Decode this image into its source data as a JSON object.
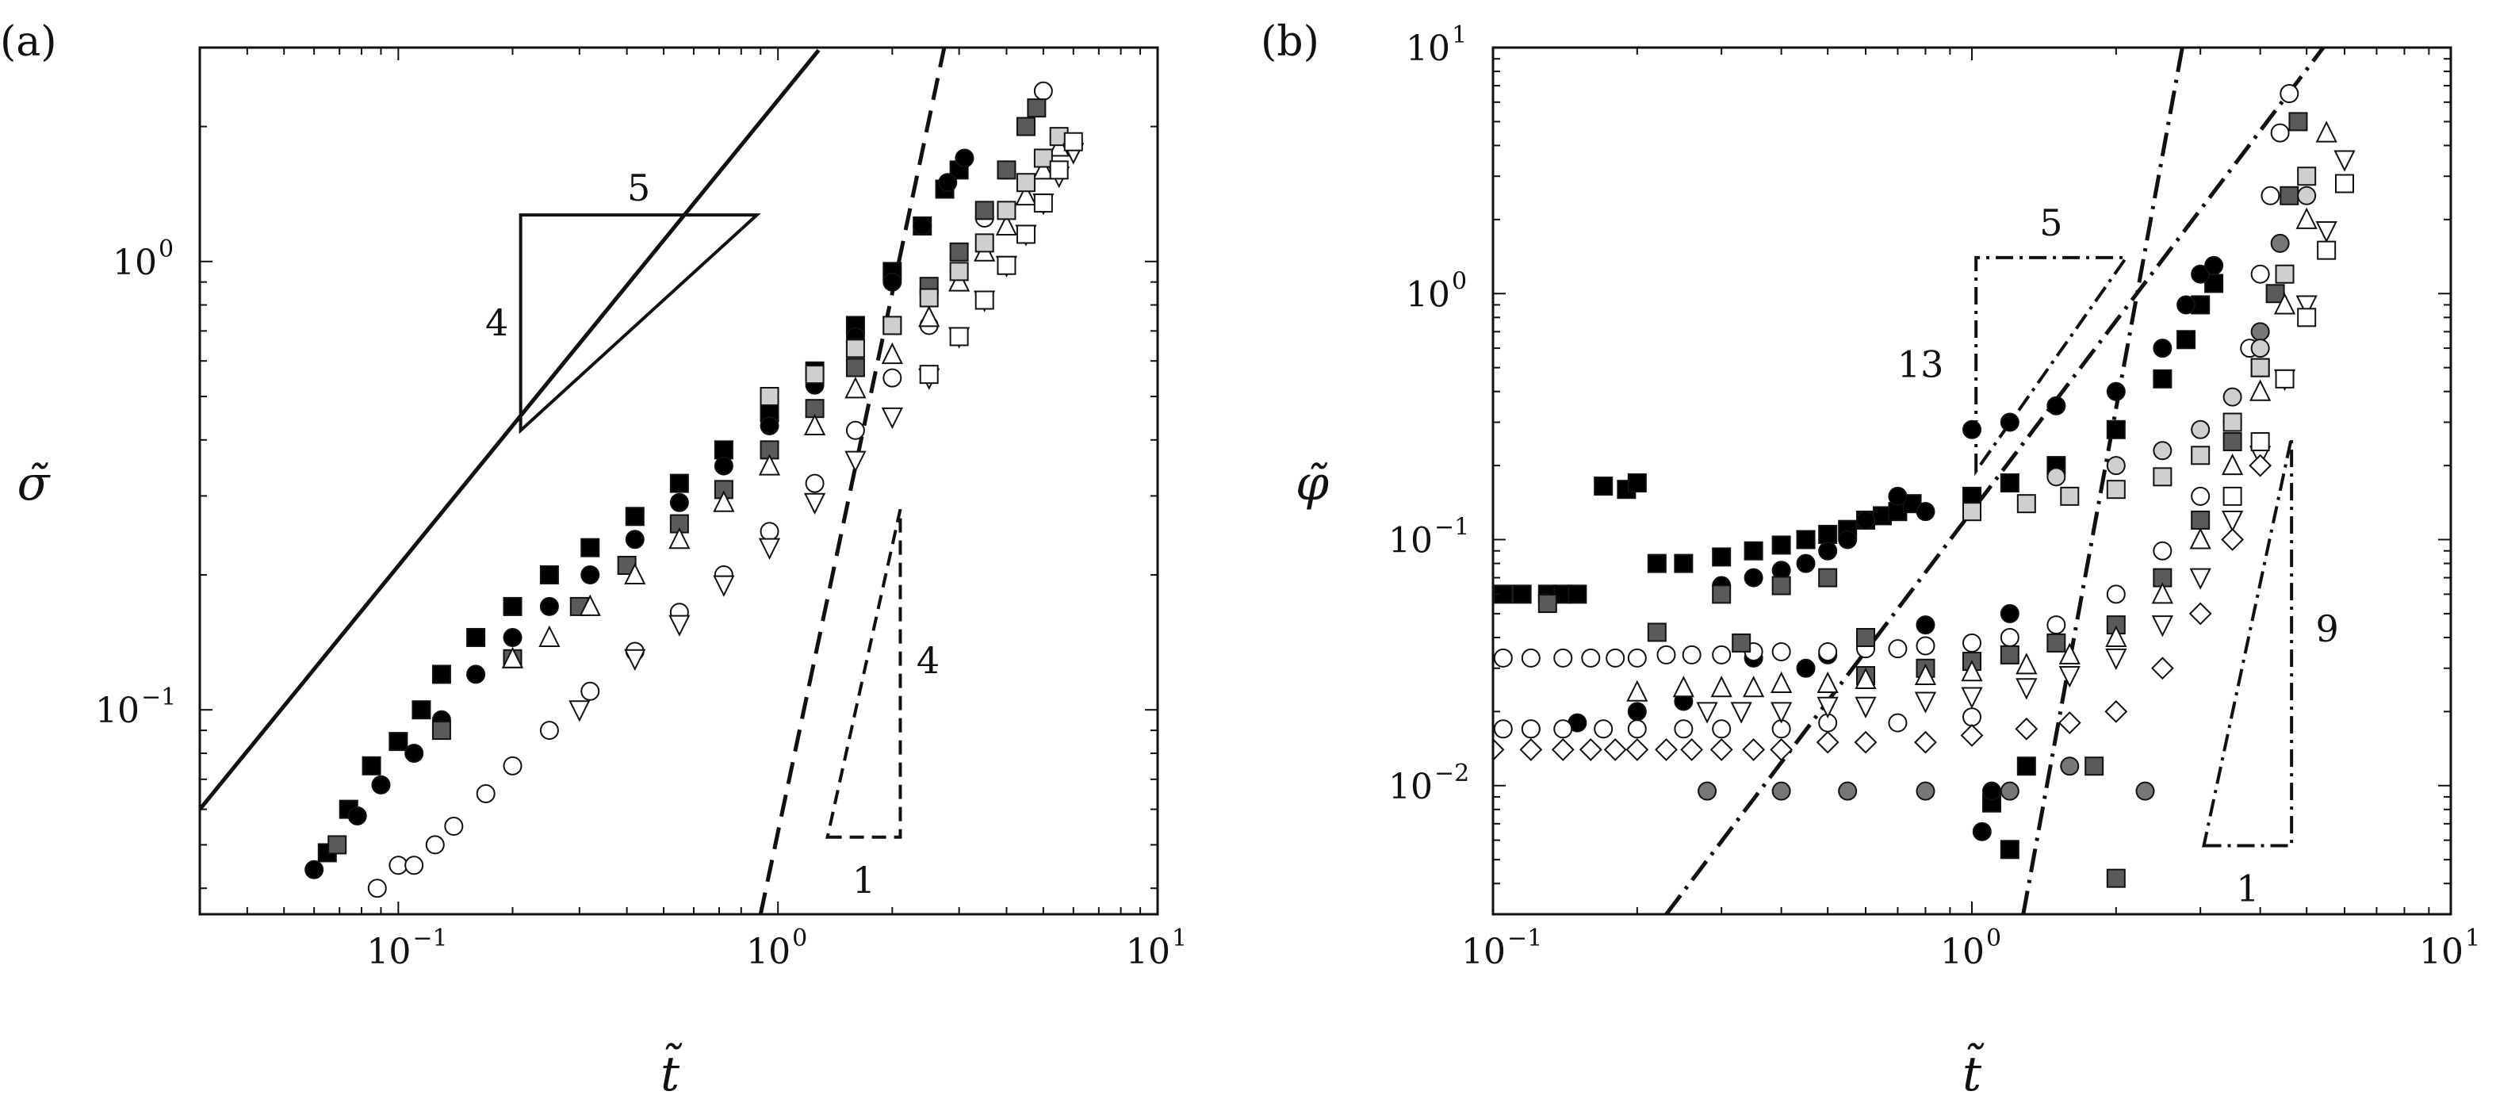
{
  "chart_data": [
    {
      "panel": "(a)",
      "type": "scatter",
      "xlabel": "t̃",
      "ylabel": "σ̃",
      "xscale": "log",
      "yscale": "log",
      "xlim": [
        0.03,
        10
      ],
      "ylim": [
        0.035,
        3
      ],
      "x_tick_labels": [
        "10",
        "10",
        "10"
      ],
      "x_tick_exponents": [
        "−1",
        "0",
        "1"
      ],
      "y_tick_labels": [
        "10",
        "10"
      ],
      "y_tick_exponents": [
        "−1",
        "0"
      ],
      "grid": false,
      "reference_lines": [
        {
          "style": "solid",
          "slope": 0.8,
          "points": [
            [
              0.03,
              0.06
            ],
            [
              1.28,
              2.96
            ]
          ]
        },
        {
          "style": "dashed",
          "slope": 4,
          "points": [
            [
              0.9,
              0.035
            ],
            [
              3.0,
              4.3
            ]
          ]
        }
      ],
      "slope_triangles": [
        {
          "style": "solid",
          "rise": "4",
          "run": "5",
          "vertices": [
            [
              0.21,
              1.27
            ],
            [
              0.88,
              1.27
            ],
            [
              0.21,
              0.42
            ]
          ]
        },
        {
          "style": "dashed",
          "rise": "4",
          "run": "1",
          "vertices": [
            [
              1.35,
              0.052
            ],
            [
              2.1,
              0.052
            ],
            [
              2.1,
              0.28
            ]
          ]
        }
      ],
      "series": [
        {
          "marker": "filled-square",
          "color": "#000000",
          "x": [
            0.065,
            0.074,
            0.085,
            0.1,
            0.115,
            0.13,
            0.16,
            0.2,
            0.25,
            0.32,
            0.42,
            0.55,
            0.72,
            0.95,
            1.25,
            1.6,
            2.0,
            2.4,
            2.75,
            3.0
          ],
          "y": [
            0.048,
            0.06,
            0.075,
            0.085,
            0.1,
            0.12,
            0.145,
            0.17,
            0.2,
            0.23,
            0.27,
            0.32,
            0.38,
            0.46,
            0.57,
            0.72,
            0.95,
            1.2,
            1.45,
            1.6
          ]
        },
        {
          "marker": "filled-circle",
          "color": "#000000",
          "x": [
            0.06,
            0.078,
            0.09,
            0.11,
            0.13,
            0.16,
            0.2,
            0.25,
            0.32,
            0.42,
            0.55,
            0.72,
            0.95,
            1.25,
            1.6,
            2.0,
            2.4,
            2.8,
            3.1
          ],
          "y": [
            0.044,
            0.058,
            0.068,
            0.08,
            0.095,
            0.12,
            0.145,
            0.17,
            0.2,
            0.24,
            0.29,
            0.35,
            0.43,
            0.53,
            0.68,
            0.9,
            1.2,
            1.5,
            1.7
          ]
        },
        {
          "marker": "open-circle",
          "color": "#ffffff",
          "x": [
            0.088,
            0.1,
            0.11,
            0.125,
            0.14,
            0.17,
            0.2,
            0.25,
            0.32,
            0.42,
            0.55,
            0.72,
            0.95,
            1.25,
            1.6,
            2.0,
            2.5,
            3.0,
            3.5,
            4.0,
            4.5,
            5.0
          ],
          "y": [
            0.04,
            0.045,
            0.045,
            0.05,
            0.055,
            0.065,
            0.075,
            0.09,
            0.11,
            0.135,
            0.165,
            0.2,
            0.25,
            0.32,
            0.42,
            0.55,
            0.72,
            0.95,
            1.25,
            1.6,
            2.0,
            2.4
          ]
        },
        {
          "marker": "dark-gray-square",
          "color": "#5a5a5a",
          "x": [
            0.069,
            0.13,
            0.2,
            0.3,
            0.4,
            0.55,
            0.72,
            0.95,
            1.25,
            1.6,
            2.0,
            2.5,
            3.0,
            3.5,
            4.0,
            4.5,
            4.8
          ],
          "y": [
            0.05,
            0.09,
            0.13,
            0.17,
            0.21,
            0.26,
            0.31,
            0.38,
            0.47,
            0.58,
            0.72,
            0.88,
            1.05,
            1.3,
            1.6,
            2.0,
            2.2
          ]
        },
        {
          "marker": "open-triangle-up",
          "color": "#ffffff",
          "x": [
            0.2,
            0.25,
            0.32,
            0.42,
            0.55,
            0.72,
            0.95,
            1.25,
            1.6,
            2.0,
            2.5,
            3.0,
            3.5,
            4.0,
            4.5,
            5.0,
            5.5
          ],
          "y": [
            0.13,
            0.145,
            0.17,
            0.2,
            0.24,
            0.29,
            0.35,
            0.43,
            0.52,
            0.62,
            0.75,
            0.9,
            1.05,
            1.2,
            1.4,
            1.6,
            1.8
          ]
        },
        {
          "marker": "light-gray-square",
          "color": "#cfcfcf",
          "x": [
            0.95,
            1.25,
            1.6,
            2.0,
            2.5,
            3.0,
            3.5,
            4.0,
            4.5,
            5.0,
            5.5
          ],
          "y": [
            0.5,
            0.56,
            0.64,
            0.72,
            0.83,
            0.95,
            1.1,
            1.3,
            1.5,
            1.7,
            1.9
          ]
        },
        {
          "marker": "open-triangle-down",
          "color": "#ffffff",
          "x": [
            0.3,
            0.42,
            0.55,
            0.72,
            0.95,
            1.25,
            1.6,
            2.0,
            2.5,
            3.0,
            3.5,
            4.0,
            4.5,
            5.0,
            5.5,
            6.0
          ],
          "y": [
            0.1,
            0.13,
            0.155,
            0.19,
            0.23,
            0.29,
            0.36,
            0.45,
            0.55,
            0.68,
            0.82,
            0.98,
            1.15,
            1.35,
            1.55,
            1.75
          ]
        },
        {
          "marker": "open-square",
          "color": "#ffffff",
          "x": [
            2.5,
            3.0,
            3.5,
            4.0,
            4.5,
            5.0,
            5.5,
            6.0
          ],
          "y": [
            0.56,
            0.68,
            0.82,
            0.98,
            1.15,
            1.35,
            1.6,
            1.85
          ]
        }
      ]
    },
    {
      "panel": "(b)",
      "type": "scatter",
      "xlabel": "t̃",
      "ylabel": "φ̃",
      "xscale": "log",
      "yscale": "log",
      "xlim": [
        0.1,
        10
      ],
      "ylim": [
        0.003,
        10
      ],
      "x_tick_labels": [
        "10",
        "10",
        "10"
      ],
      "x_tick_exponents": [
        "−1",
        "0",
        "1"
      ],
      "y_tick_labels": [
        "10",
        "10",
        "10",
        "10"
      ],
      "y_tick_exponents": [
        "−2",
        "−1",
        "0",
        "1"
      ],
      "grid": false,
      "reference_lines": [
        {
          "style": "dash-dot",
          "slope": 2.6,
          "points": [
            [
              0.23,
              0.003
            ],
            [
              6.0,
              13.0
            ]
          ]
        },
        {
          "style": "dash-dot",
          "slope": 9,
          "points": [
            [
              1.28,
              0.003
            ],
            [
              2.75,
              10.0
            ]
          ]
        }
      ],
      "slope_triangles": [
        {
          "style": "dash-dot",
          "rise": "13",
          "run": "5",
          "vertices": [
            [
              1.02,
              0.19
            ],
            [
              1.02,
              1.4
            ],
            [
              2.1,
              1.4
            ]
          ]
        },
        {
          "style": "dash-dot",
          "rise": "9",
          "run": "1",
          "vertices": [
            [
              3.05,
              0.0057
            ],
            [
              4.65,
              0.0057
            ],
            [
              4.65,
              0.26
            ]
          ]
        }
      ],
      "series": [
        {
          "marker": "filled-square",
          "color": "#000000",
          "x": [
            0.105,
            0.115,
            0.13,
            0.14,
            0.15,
            0.17,
            0.19,
            0.2,
            0.22,
            0.25,
            0.3,
            0.35,
            0.4,
            0.45,
            0.5,
            0.55,
            0.6,
            0.65,
            0.7,
            0.75,
            1.0,
            1.2,
            1.5,
            2.0,
            2.5,
            2.8,
            3.0,
            3.2,
            1.1,
            1.2,
            1.3
          ],
          "y": [
            0.06,
            0.06,
            0.06,
            0.06,
            0.06,
            0.165,
            0.16,
            0.17,
            0.08,
            0.08,
            0.085,
            0.09,
            0.095,
            0.1,
            0.105,
            0.11,
            0.12,
            0.125,
            0.13,
            0.14,
            0.15,
            0.17,
            0.2,
            0.28,
            0.45,
            0.65,
            0.9,
            1.1,
            0.0085,
            0.0055,
            0.012
          ]
        },
        {
          "marker": "filled-circle",
          "color": "#000000",
          "x": [
            0.12,
            0.15,
            0.2,
            0.25,
            0.3,
            0.35,
            0.4,
            0.45,
            0.5,
            0.55,
            0.6,
            0.7,
            0.8,
            1.0,
            1.2,
            1.5,
            2.0,
            2.5,
            2.8,
            3.0,
            3.2,
            1.05,
            1.1,
            0.35,
            0.45,
            0.5,
            0.6,
            0.8,
            1.2
          ],
          "y": [
            0.017,
            0.018,
            0.02,
            0.022,
            0.065,
            0.07,
            0.075,
            0.08,
            0.09,
            0.1,
            0.12,
            0.15,
            0.13,
            0.28,
            0.3,
            0.35,
            0.4,
            0.6,
            0.9,
            1.2,
            1.3,
            0.0065,
            0.0095,
            0.033,
            0.03,
            0.034,
            0.04,
            0.045,
            0.05
          ]
        },
        {
          "marker": "open-circle",
          "color": "#ffffff",
          "x": [
            0.105,
            0.12,
            0.14,
            0.16,
            0.18,
            0.2,
            0.23,
            0.26,
            0.3,
            0.35,
            0.4,
            0.5,
            0.6,
            0.7,
            0.8,
            1.0,
            1.2,
            1.5,
            2.0,
            2.5,
            3.0,
            3.5,
            3.8,
            4.0,
            4.2,
            4.4,
            4.6,
            0.105,
            0.12,
            0.14,
            0.17,
            0.2,
            0.25,
            0.3,
            0.4,
            0.5,
            0.7,
            1.0
          ],
          "y": [
            0.033,
            0.033,
            0.033,
            0.033,
            0.033,
            0.033,
            0.034,
            0.034,
            0.034,
            0.035,
            0.035,
            0.035,
            0.036,
            0.036,
            0.037,
            0.038,
            0.04,
            0.045,
            0.06,
            0.09,
            0.15,
            0.3,
            0.6,
            1.2,
            2.5,
            4.5,
            6.5,
            0.017,
            0.017,
            0.017,
            0.017,
            0.017,
            0.017,
            0.017,
            0.017,
            0.018,
            0.018,
            0.019
          ]
        },
        {
          "marker": "dark-gray-square",
          "color": "#5a5a5a",
          "x": [
            0.13,
            0.22,
            0.3,
            0.4,
            0.5,
            0.6,
            0.8,
            1.0,
            1.2,
            1.5,
            2.0,
            2.5,
            3.0,
            3.5,
            4.0,
            4.3,
            4.6,
            4.8,
            2.0,
            1.8,
            0.33,
            0.6
          ],
          "y": [
            0.055,
            0.042,
            0.06,
            0.065,
            0.07,
            0.028,
            0.03,
            0.032,
            0.034,
            0.038,
            0.045,
            0.07,
            0.12,
            0.25,
            0.5,
            1.0,
            2.5,
            5.0,
            0.0042,
            0.012,
            0.038,
            0.04
          ]
        },
        {
          "marker": "gray-circle",
          "color": "#777777",
          "x": [
            0.28,
            0.4,
            0.55,
            0.8,
            1.2,
            1.6,
            2.3,
            3.5,
            4.0,
            4.4
          ],
          "y": [
            0.0095,
            0.0095,
            0.0095,
            0.0095,
            0.0095,
            0.012,
            0.0095,
            0.3,
            0.7,
            1.6
          ]
        },
        {
          "marker": "light-gray-circle",
          "color": "#cfcfcf",
          "x": [
            1.5,
            2.0,
            2.5,
            3.0,
            3.5,
            4.0,
            4.5,
            5.0
          ],
          "y": [
            0.18,
            0.2,
            0.23,
            0.28,
            0.38,
            0.6,
            1.2,
            2.5
          ]
        },
        {
          "marker": "open-triangle-up",
          "color": "#ffffff",
          "x": [
            0.2,
            0.25,
            0.3,
            0.35,
            0.4,
            0.5,
            0.6,
            0.8,
            1.0,
            1.3,
            1.6,
            2.0,
            2.5,
            3.0,
            3.5,
            4.0,
            4.5,
            5.0,
            5.5
          ],
          "y": [
            0.024,
            0.025,
            0.025,
            0.025,
            0.026,
            0.026,
            0.027,
            0.028,
            0.029,
            0.031,
            0.034,
            0.04,
            0.06,
            0.1,
            0.2,
            0.4,
            0.9,
            2.0,
            4.5
          ]
        },
        {
          "marker": "open-triangle-down",
          "color": "#ffffff",
          "x": [
            0.28,
            0.33,
            0.4,
            0.5,
            0.6,
            0.8,
            1.0,
            1.3,
            1.6,
            2.0,
            2.5,
            3.0,
            3.5,
            4.0,
            4.5,
            5.0,
            5.5,
            6.0
          ],
          "y": [
            0.02,
            0.02,
            0.02,
            0.021,
            0.021,
            0.022,
            0.023,
            0.025,
            0.028,
            0.033,
            0.045,
            0.07,
            0.12,
            0.22,
            0.45,
            0.9,
            1.8,
            3.5
          ]
        },
        {
          "marker": "open-diamond",
          "color": "#ffffff",
          "x": [
            0.1,
            0.12,
            0.14,
            0.16,
            0.18,
            0.2,
            0.23,
            0.26,
            0.3,
            0.35,
            0.4,
            0.5,
            0.6,
            0.8,
            1.0,
            1.3,
            1.6,
            2.0,
            2.5,
            3.0,
            3.5,
            4.0
          ],
          "y": [
            0.014,
            0.014,
            0.014,
            0.014,
            0.014,
            0.014,
            0.014,
            0.014,
            0.014,
            0.014,
            0.014,
            0.015,
            0.015,
            0.015,
            0.016,
            0.017,
            0.018,
            0.02,
            0.03,
            0.05,
            0.1,
            0.2
          ]
        },
        {
          "marker": "light-gray-square",
          "color": "#cfcfcf",
          "x": [
            1.0,
            1.3,
            1.6,
            2.0,
            2.5,
            3.0,
            3.5,
            4.0,
            4.5,
            5.0
          ],
          "y": [
            0.13,
            0.14,
            0.15,
            0.16,
            0.18,
            0.22,
            0.3,
            0.5,
            1.2,
            3.0
          ]
        },
        {
          "marker": "open-square",
          "color": "#ffffff",
          "x": [
            3.5,
            4.0,
            4.5,
            5.0,
            5.5,
            6.0
          ],
          "y": [
            0.15,
            0.25,
            0.45,
            0.8,
            1.5,
            2.8
          ]
        }
      ]
    }
  ]
}
